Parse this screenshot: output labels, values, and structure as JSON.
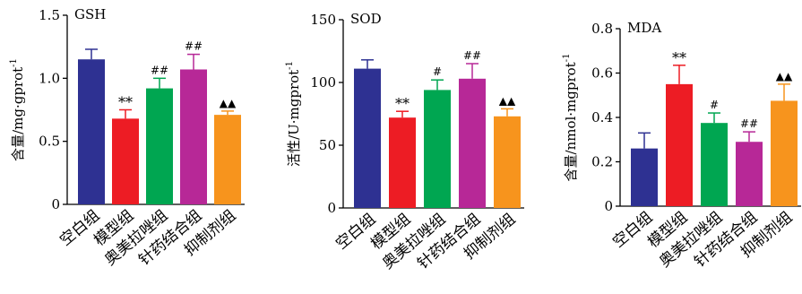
{
  "chart_data": [
    {
      "type": "bar",
      "title": "GSH",
      "ylabel": "含量/mg·gprot",
      "ylabel_superscript": "-1",
      "categories": [
        "空白组",
        "模型组",
        "奥美拉唑组",
        "针药结合组",
        "抑制剂组"
      ],
      "values": [
        1.15,
        0.68,
        0.92,
        1.07,
        0.71
      ],
      "errors": [
        0.08,
        0.07,
        0.08,
        0.12,
        0.03
      ],
      "annotations": [
        "",
        "**",
        "##",
        "##",
        "▲▲"
      ],
      "ylim": [
        0,
        1.5
      ],
      "yticks": [
        0,
        0.5,
        1.0,
        1.5
      ],
      "ytick_labels": [
        "0",
        "0.5",
        "1.0",
        "1.5"
      ],
      "grid": false
    },
    {
      "type": "bar",
      "title": "SOD",
      "ylabel": "活性/U·mgprot",
      "ylabel_superscript": "-1",
      "categories": [
        "空白组",
        "模型组",
        "奥美拉唑组",
        "针药结合组",
        "抑制剂组"
      ],
      "values": [
        111,
        72,
        94,
        103,
        73
      ],
      "errors": [
        7,
        5,
        8,
        12,
        6
      ],
      "annotations": [
        "",
        "**",
        "#",
        "##",
        "▲▲"
      ],
      "ylim": [
        0,
        150
      ],
      "yticks": [
        0,
        50,
        100,
        150
      ],
      "ytick_labels": [
        "0",
        "50",
        "100",
        "150"
      ],
      "grid": false
    },
    {
      "type": "bar",
      "title": "MDA",
      "ylabel": "含量/nmol·mgprot",
      "ylabel_superscript": "-1",
      "categories": [
        "空白组",
        "模型组",
        "奥美拉唑组",
        "针药结合组",
        "抑制剂组"
      ],
      "values": [
        0.26,
        0.55,
        0.375,
        0.29,
        0.475
      ],
      "errors": [
        0.07,
        0.085,
        0.045,
        0.045,
        0.075
      ],
      "annotations": [
        "",
        "**",
        "#",
        "##",
        "▲▲"
      ],
      "ylim": [
        0,
        0.8
      ],
      "yticks": [
        0,
        0.2,
        0.4,
        0.6,
        0.8
      ],
      "ytick_labels": [
        "0",
        "0.2",
        "0.4",
        "0.6",
        "0.8"
      ],
      "grid": false
    }
  ],
  "colors": {
    "bars": [
      "#2e3192",
      "#ed1c24",
      "#00a651",
      "#b72897",
      "#f7941d"
    ],
    "axis": "#000000"
  }
}
